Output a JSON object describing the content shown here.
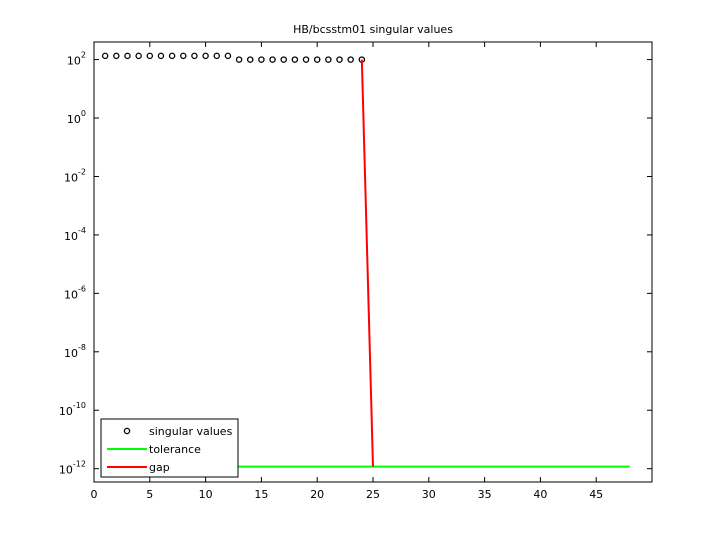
{
  "chart_data": {
    "type": "scatter",
    "title": "HB/bcsstm01 singular values",
    "log_y": true,
    "xlim": [
      0,
      50
    ],
    "xticks": [
      0,
      5,
      10,
      15,
      20,
      25,
      30,
      35,
      40,
      45
    ],
    "ylim": [
      3.5e-13,
      400
    ],
    "yticks": [
      {
        "value": 100,
        "label": "10^2"
      },
      {
        "value": 1,
        "label": "10^0"
      },
      {
        "value": 0.01,
        "label": "10^-2"
      },
      {
        "value": 0.0001,
        "label": "10^-4"
      },
      {
        "value": 1e-06,
        "label": "10^-6"
      },
      {
        "value": 1e-08,
        "label": "10^-8"
      },
      {
        "value": 1e-10,
        "label": "10^-10"
      },
      {
        "value": 1e-12,
        "label": "10^-12"
      }
    ],
    "series": [
      {
        "name": "singular values",
        "kind": "markers",
        "color": "#000000",
        "x": [
          1,
          2,
          3,
          4,
          5,
          6,
          7,
          8,
          9,
          10,
          11,
          12,
          13,
          14,
          15,
          16,
          17,
          18,
          19,
          20,
          21,
          22,
          23,
          24
        ],
        "values": [
          134,
          134,
          134,
          134,
          134,
          134,
          134,
          134,
          134,
          134,
          134,
          134,
          100,
          100,
          100,
          100,
          100,
          100,
          100,
          100,
          100,
          100,
          100,
          100
        ]
      },
      {
        "name": "tolerance",
        "kind": "line",
        "color": "#00ff00",
        "x": [
          1,
          48
        ],
        "values": [
          1.18e-12,
          1.18e-12
        ]
      },
      {
        "name": "gap",
        "kind": "line",
        "color": "#ff0000",
        "x": [
          24,
          25
        ],
        "values": [
          100,
          1.18e-12
        ]
      }
    ],
    "legend": "lower-left"
  }
}
